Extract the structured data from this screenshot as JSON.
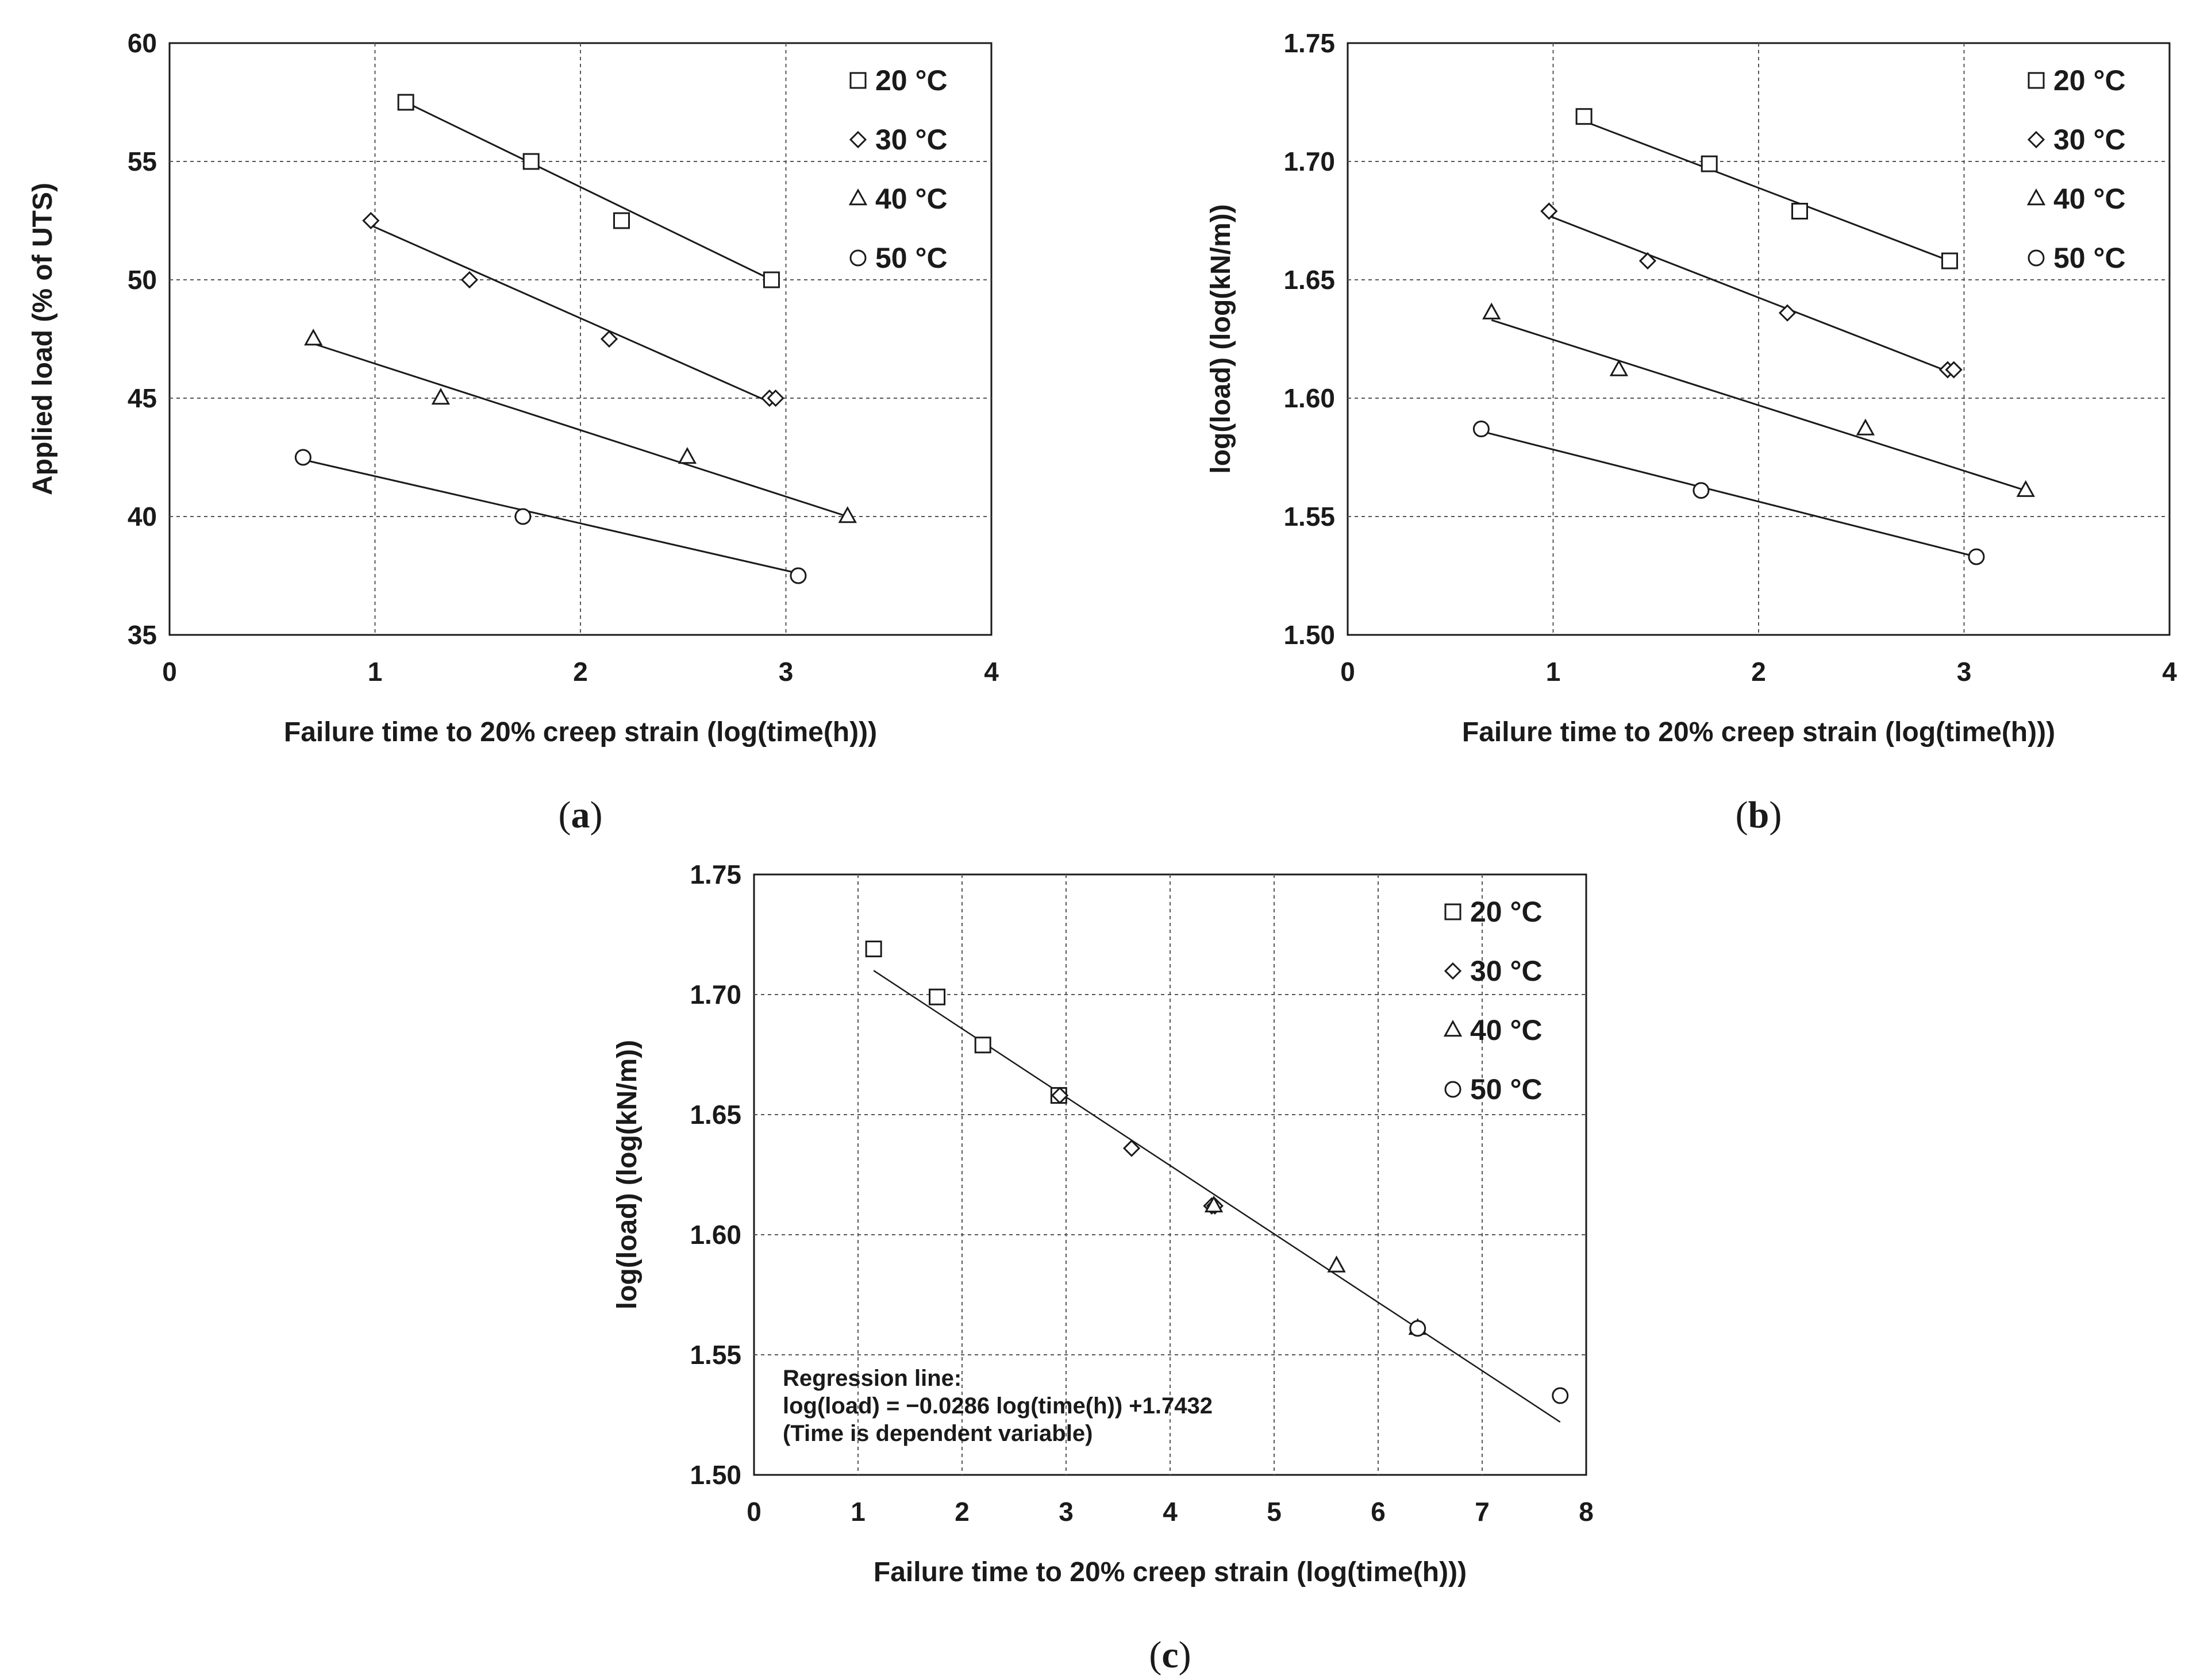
{
  "chart_data": [
    {
      "type": "scatter",
      "panel_label": "a",
      "xlabel": "Failure time to 20% creep strain (log(time(h)))",
      "ylabel": "Applied load (% of UTS)",
      "xlim": [
        0,
        4
      ],
      "ylim": [
        35,
        60
      ],
      "xticks": [
        "0",
        "1",
        "2",
        "3",
        "4"
      ],
      "yticks": [
        "35",
        "40",
        "45",
        "50",
        "55",
        "60"
      ],
      "grid": true,
      "legend_position": "top-right",
      "series": [
        {
          "name": "20 °C",
          "marker": "square",
          "x": [
            1.15,
            1.76,
            2.2,
            2.93
          ],
          "y": [
            57.5,
            55,
            52.5,
            50
          ],
          "fit": [
            [
              1.15,
              57.5
            ],
            [
              2.93,
              50
            ]
          ]
        },
        {
          "name": "30 °C",
          "marker": "diamond",
          "x": [
            0.98,
            1.46,
            2.14,
            2.92,
            2.95
          ],
          "y": [
            52.5,
            50,
            47.5,
            45,
            45
          ],
          "fit": [
            [
              0.98,
              52.3
            ],
            [
              2.93,
              44.8
            ]
          ]
        },
        {
          "name": "40 °C",
          "marker": "triangle",
          "x": [
            0.7,
            1.32,
            2.52,
            3.3
          ],
          "y": [
            47.5,
            45,
            42.5,
            40
          ],
          "fit": [
            [
              0.7,
              47.3
            ],
            [
              3.3,
              40
            ]
          ]
        },
        {
          "name": "50 °C",
          "marker": "circle",
          "x": [
            0.65,
            1.72,
            3.06
          ],
          "y": [
            42.5,
            40,
            37.5
          ],
          "fit": [
            [
              0.65,
              42.4
            ],
            [
              3.06,
              37.6
            ]
          ]
        }
      ]
    },
    {
      "type": "scatter",
      "panel_label": "b",
      "xlabel": "Failure time to 20% creep strain (log(time(h)))",
      "ylabel": "log(load) (log(kN/m))",
      "xlim": [
        0,
        4
      ],
      "ylim": [
        1.5,
        1.75
      ],
      "xticks": [
        "0",
        "1",
        "2",
        "3",
        "4"
      ],
      "yticks": [
        "1.50",
        "1.55",
        "1.60",
        "1.65",
        "1.70",
        "1.75"
      ],
      "grid": true,
      "legend_position": "top-right",
      "series": [
        {
          "name": "20 °C",
          "marker": "square",
          "x": [
            1.15,
            1.76,
            2.2,
            2.93
          ],
          "y": [
            1.719,
            1.699,
            1.679,
            1.658
          ],
          "fit": [
            [
              1.15,
              1.717
            ],
            [
              2.93,
              1.658
            ]
          ]
        },
        {
          "name": "30 °C",
          "marker": "diamond",
          "x": [
            0.98,
            1.46,
            2.14,
            2.92,
            2.95
          ],
          "y": [
            1.679,
            1.658,
            1.636,
            1.612,
            1.612
          ],
          "fit": [
            [
              0.98,
              1.677
            ],
            [
              2.93,
              1.611
            ]
          ]
        },
        {
          "name": "40 °C",
          "marker": "triangle",
          "x": [
            0.7,
            1.32,
            2.52,
            3.3
          ],
          "y": [
            1.636,
            1.612,
            1.587,
            1.561
          ],
          "fit": [
            [
              0.7,
              1.633
            ],
            [
              3.3,
              1.561
            ]
          ]
        },
        {
          "name": "50 °C",
          "marker": "circle",
          "x": [
            0.65,
            1.72,
            3.06
          ],
          "y": [
            1.587,
            1.561,
            1.533
          ],
          "fit": [
            [
              0.65,
              1.586
            ],
            [
              3.06,
              1.533
            ]
          ]
        }
      ]
    },
    {
      "type": "scatter",
      "panel_label": "c",
      "xlabel": "Failure time to 20% creep strain (log(time(h)))",
      "ylabel": "log(load) (log(kN/m))",
      "xlim": [
        0,
        8
      ],
      "ylim": [
        1.5,
        1.75
      ],
      "xticks": [
        "0",
        "1",
        "2",
        "3",
        "4",
        "5",
        "6",
        "7",
        "8"
      ],
      "yticks": [
        "1.50",
        "1.55",
        "1.60",
        "1.65",
        "1.70",
        "1.75"
      ],
      "grid": true,
      "legend_position": "top-right",
      "annotation": [
        "Regression line:",
        "log(load) = −0.0286 log(time(h)) +1.7432",
        "(Time is dependent variable)"
      ],
      "regression_line": [
        [
          1.15,
          1.71
        ],
        [
          7.75,
          1.522
        ]
      ],
      "series": [
        {
          "name": "20 °C",
          "marker": "square",
          "x": [
            1.15,
            1.76,
            2.2,
            2.93
          ],
          "y": [
            1.719,
            1.699,
            1.679,
            1.658
          ]
        },
        {
          "name": "30 °C",
          "marker": "diamond",
          "x": [
            2.94,
            3.63,
            4.4,
            4.43
          ],
          "y": [
            1.658,
            1.636,
            1.612,
            1.612
          ]
        },
        {
          "name": "40 °C",
          "marker": "triangle",
          "x": [
            4.42,
            5.6,
            6.38
          ],
          "y": [
            1.612,
            1.587,
            1.561
          ]
        },
        {
          "name": "50 °C",
          "marker": "circle",
          "x": [
            6.38,
            7.75
          ],
          "y": [
            1.561,
            1.533
          ]
        }
      ]
    }
  ]
}
